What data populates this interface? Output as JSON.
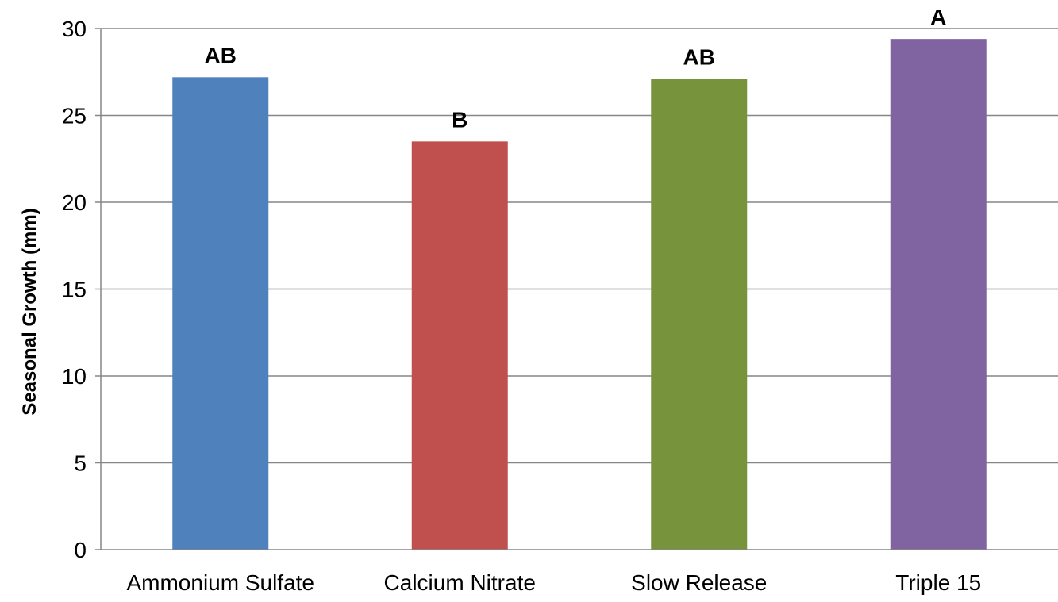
{
  "chart_data": {
    "type": "bar",
    "title": "",
    "xlabel": "",
    "ylabel": "Seasonal  Growth (mm)",
    "ylim": [
      0,
      30
    ],
    "yticks": [
      0,
      5,
      10,
      15,
      20,
      25,
      30
    ],
    "grid": true,
    "legend": "none",
    "categories": [
      "Ammonium Sulfate",
      "Calcium Nitrate",
      "Slow Release",
      "Triple 15"
    ],
    "values": [
      27.2,
      23.5,
      27.1,
      29.4
    ],
    "significance_labels": [
      "AB",
      "B",
      "AB",
      "A"
    ],
    "colors": [
      "#4F81BD",
      "#C0504D",
      "#77933C",
      "#8064A2"
    ]
  }
}
